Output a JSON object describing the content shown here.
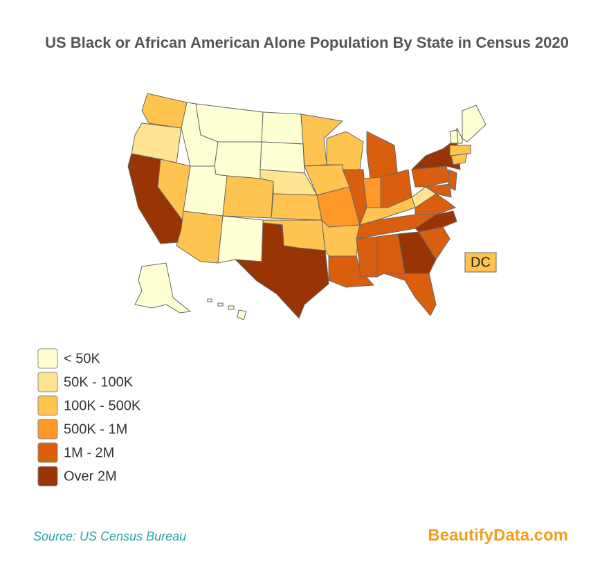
{
  "title": "US Black or African American Alone Population By State in Census 2020",
  "map_label": "DC",
  "legend": [
    {
      "label": "< 50K",
      "color": "#ffffd4"
    },
    {
      "label": "50K - 100K",
      "color": "#fee391"
    },
    {
      "label": "100K - 500K",
      "color": "#fec44f"
    },
    {
      "label": "500K - 1M",
      "color": "#fe9929"
    },
    {
      "label": "1M - 2M",
      "color": "#d95f0e"
    },
    {
      "label": "Over 2M",
      "color": "#993404"
    }
  ],
  "source": "Source: US Census Bureau",
  "brand": "BeautifyData.com"
}
